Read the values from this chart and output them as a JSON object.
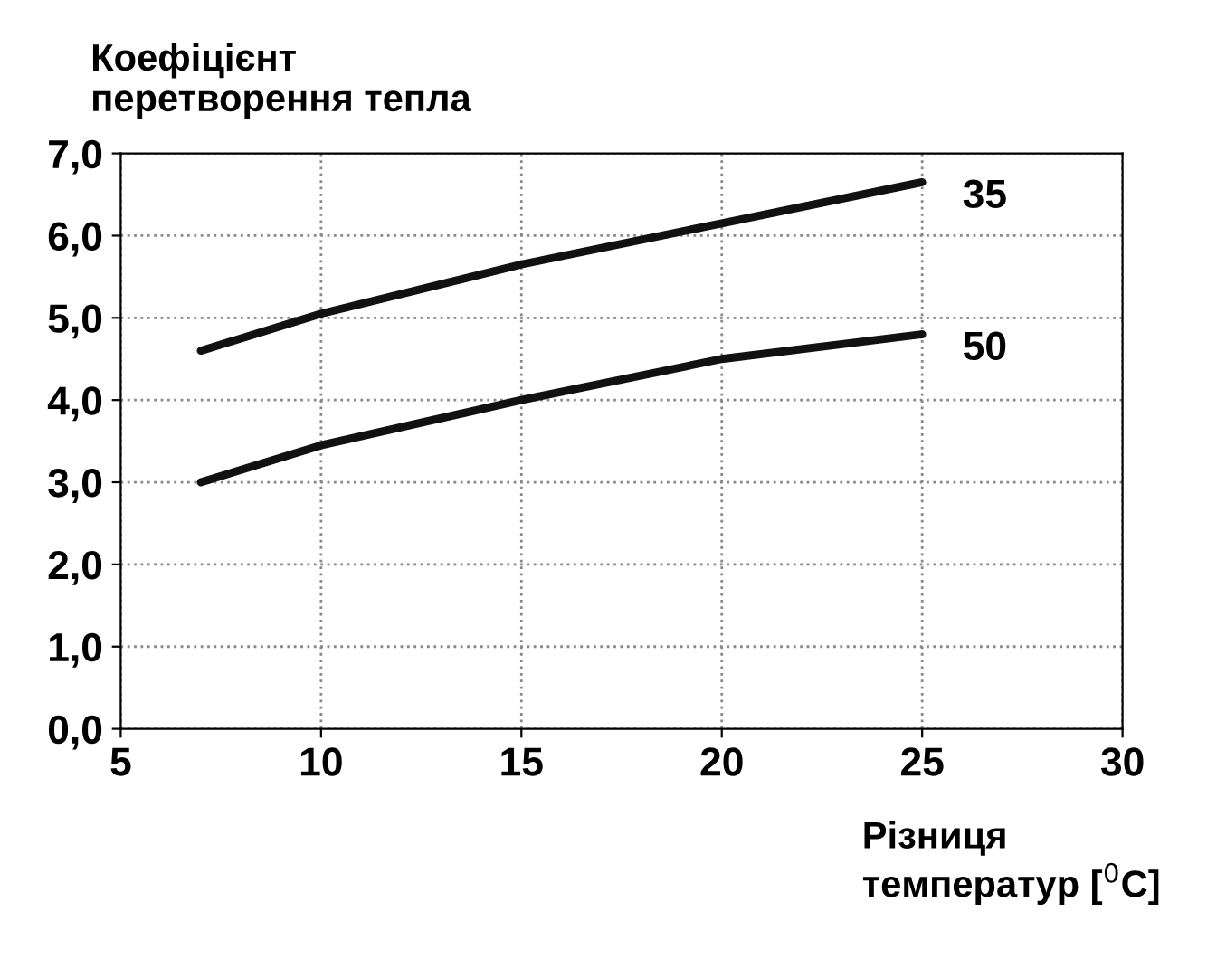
{
  "chart_data": {
    "type": "line",
    "ylabel": "Коефіцієнт\nперетворення тепла",
    "xlabel": "Різниця\nтемператур [$^{0}$C]",
    "x": [
      7,
      10,
      15,
      20,
      25
    ],
    "series": [
      {
        "name": "35",
        "color": "#111111",
        "values": [
          4.6,
          5.05,
          5.65,
          6.15,
          6.65
        ]
      },
      {
        "name": "50",
        "color": "#111111",
        "values": [
          3.0,
          3.45,
          4.0,
          4.5,
          4.8
        ]
      }
    ],
    "xlim": [
      5,
      30
    ],
    "xticks": [
      5,
      10,
      15,
      20,
      25,
      30
    ],
    "ylim": [
      0,
      7
    ],
    "yticks": [
      {
        "value": 0,
        "label": "0,0"
      },
      {
        "value": 1,
        "label": "1,0"
      },
      {
        "value": 2,
        "label": "2,0"
      },
      {
        "value": 3,
        "label": "3,0"
      },
      {
        "value": 4,
        "label": "4,0"
      },
      {
        "value": 5,
        "label": "5,0"
      },
      {
        "value": 6,
        "label": "6,0"
      },
      {
        "value": 7,
        "label": "7,0"
      }
    ],
    "grid": true,
    "legend": false,
    "marker": "none",
    "line_style": "solid"
  }
}
